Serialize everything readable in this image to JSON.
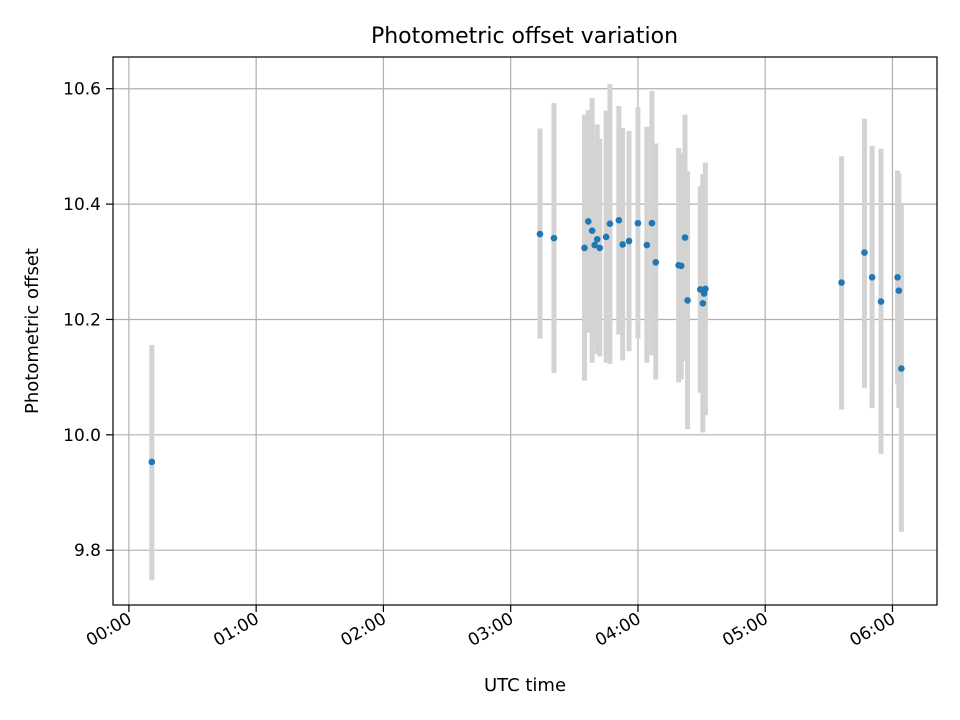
{
  "chart_data": {
    "type": "scatter",
    "title": "Photometric offset variation",
    "xlabel": "UTC time",
    "ylabel": "Photometric offset",
    "x_unit": "hours",
    "xlim": [
      -0.125,
      6.35
    ],
    "ylim": [
      9.705,
      10.655
    ],
    "x_ticks": [
      0,
      1,
      2,
      3,
      4,
      5,
      6
    ],
    "x_tick_labels": [
      "00:00",
      "01:00",
      "02:00",
      "03:00",
      "04:00",
      "05:00",
      "06:00"
    ],
    "y_ticks": [
      9.8,
      10.0,
      10.2,
      10.4,
      10.6
    ],
    "y_tick_labels": [
      "9.8",
      "10.0",
      "10.2",
      "10.4",
      "10.6"
    ],
    "grid": true,
    "legend": "none",
    "colors": {
      "points": "#1f77b4",
      "errorbars": "#d3d3d3",
      "grid": "#b0b0b0"
    },
    "points": [
      {
        "x": 0.18,
        "y": 9.953,
        "lo": 9.748,
        "hi": 10.156
      },
      {
        "x": 3.23,
        "y": 10.348,
        "lo": 10.167,
        "hi": 10.531
      },
      {
        "x": 3.34,
        "y": 10.341,
        "lo": 10.107,
        "hi": 10.575
      },
      {
        "x": 3.58,
        "y": 10.324,
        "lo": 10.094,
        "hi": 10.555
      },
      {
        "x": 3.61,
        "y": 10.37,
        "lo": 10.177,
        "hi": 10.563
      },
      {
        "x": 3.64,
        "y": 10.354,
        "lo": 10.125,
        "hi": 10.584
      },
      {
        "x": 3.66,
        "y": 10.329,
        "lo": 10.164,
        "hi": 10.494
      },
      {
        "x": 3.68,
        "y": 10.339,
        "lo": 10.14,
        "hi": 10.538
      },
      {
        "x": 3.7,
        "y": 10.324,
        "lo": 10.136,
        "hi": 10.513
      },
      {
        "x": 3.75,
        "y": 10.343,
        "lo": 10.125,
        "hi": 10.562
      },
      {
        "x": 3.78,
        "y": 10.366,
        "lo": 10.123,
        "hi": 10.608
      },
      {
        "x": 3.85,
        "y": 10.372,
        "lo": 10.174,
        "hi": 10.57
      },
      {
        "x": 3.88,
        "y": 10.33,
        "lo": 10.129,
        "hi": 10.532
      },
      {
        "x": 3.93,
        "y": 10.336,
        "lo": 10.145,
        "hi": 10.527
      },
      {
        "x": 4.0,
        "y": 10.367,
        "lo": 10.167,
        "hi": 10.568
      },
      {
        "x": 4.07,
        "y": 10.329,
        "lo": 10.125,
        "hi": 10.534
      },
      {
        "x": 4.11,
        "y": 10.367,
        "lo": 10.138,
        "hi": 10.596
      },
      {
        "x": 4.14,
        "y": 10.299,
        "lo": 10.096,
        "hi": 10.505
      },
      {
        "x": 4.32,
        "y": 10.294,
        "lo": 10.091,
        "hi": 10.497
      },
      {
        "x": 4.34,
        "y": 10.293,
        "lo": 10.096,
        "hi": 10.489
      },
      {
        "x": 4.37,
        "y": 10.342,
        "lo": 10.128,
        "hi": 10.555
      },
      {
        "x": 4.39,
        "y": 10.233,
        "lo": 10.01,
        "hi": 10.457
      },
      {
        "x": 4.49,
        "y": 10.252,
        "lo": 10.073,
        "hi": 10.431
      },
      {
        "x": 4.51,
        "y": 10.228,
        "lo": 10.004,
        "hi": 10.452
      },
      {
        "x": 4.52,
        "y": 10.245,
        "lo": 10.038,
        "hi": 10.452
      },
      {
        "x": 4.53,
        "y": 10.253,
        "lo": 10.034,
        "hi": 10.472
      },
      {
        "x": 5.6,
        "y": 10.264,
        "lo": 10.044,
        "hi": 10.483
      },
      {
        "x": 5.78,
        "y": 10.316,
        "lo": 10.081,
        "hi": 10.548
      },
      {
        "x": 5.84,
        "y": 10.273,
        "lo": 10.046,
        "hi": 10.501
      },
      {
        "x": 5.91,
        "y": 10.231,
        "lo": 9.967,
        "hi": 10.496
      },
      {
        "x": 6.04,
        "y": 10.273,
        "lo": 10.087,
        "hi": 10.458
      },
      {
        "x": 6.05,
        "y": 10.25,
        "lo": 10.047,
        "hi": 10.453
      },
      {
        "x": 6.07,
        "y": 10.115,
        "lo": 9.832,
        "hi": 10.398
      }
    ]
  }
}
